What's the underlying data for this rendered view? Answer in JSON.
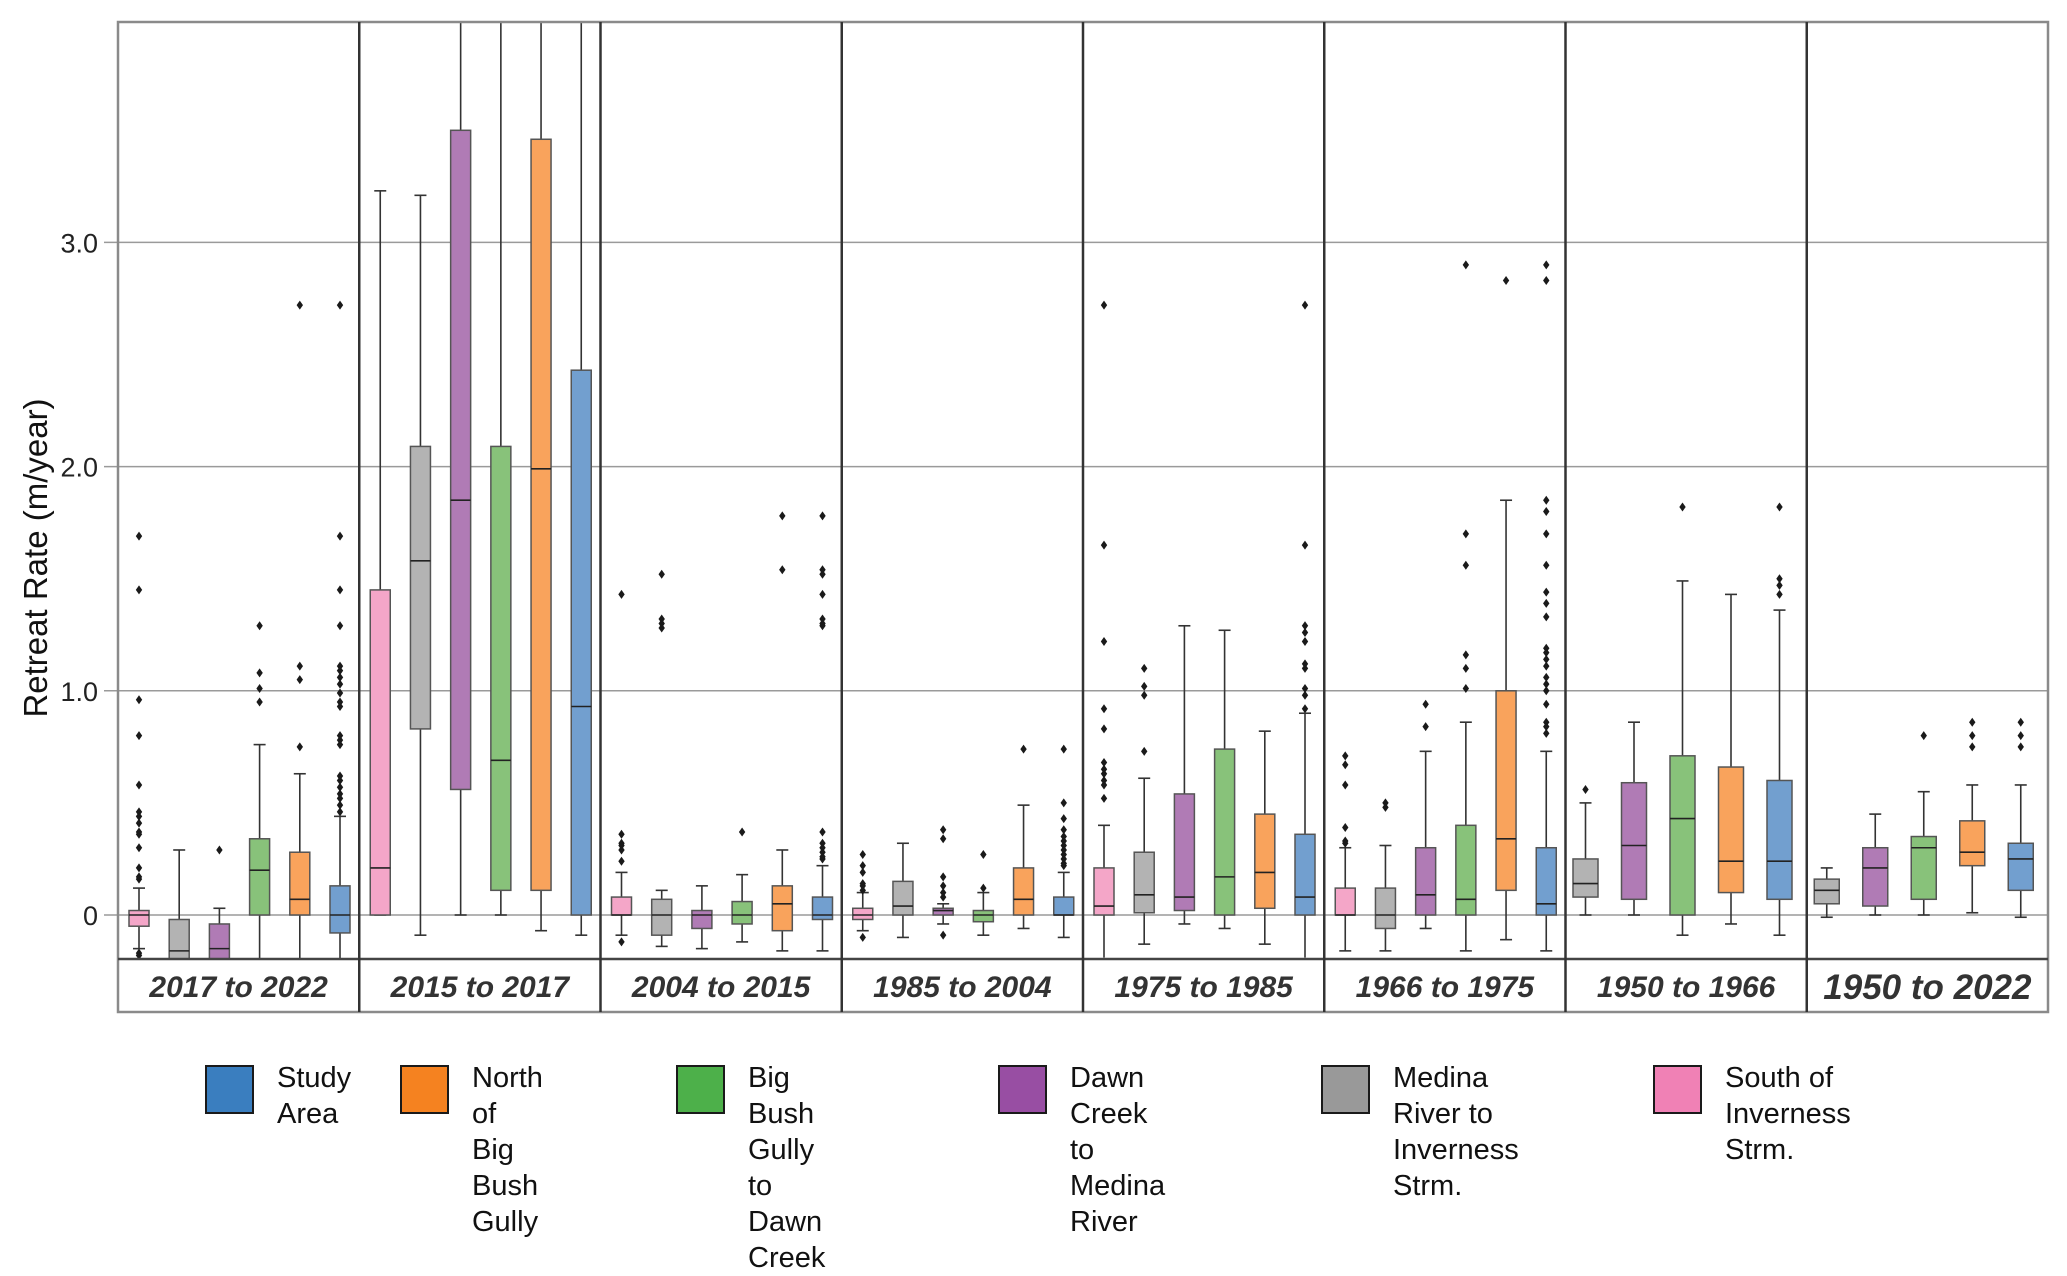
{
  "chart_data": {
    "type": "boxplot",
    "title": "",
    "ylabel": "Retreat Rate (m/year)",
    "xlabel": "",
    "ylim": [
      -0.22,
      3.98
    ],
    "yticks": [
      {
        "value": 0,
        "label": "0"
      },
      {
        "value": 1.0,
        "label": "1.0"
      },
      {
        "value": 2.0,
        "label": "2.0"
      },
      {
        "value": 3.0,
        "label": "3.0"
      }
    ],
    "grid": "horizontal",
    "legend_position": "bottom",
    "series": [
      {
        "key": "study",
        "name": "Study Area",
        "legend_label": "Study\nArea",
        "color": "#3a7ebf",
        "box_color": "#729fcf"
      },
      {
        "key": "north",
        "name": "North of Big Bush Gully",
        "legend_label": "North of Big\nBush Gully",
        "color": "#f58220",
        "box_color": "#f9a35c"
      },
      {
        "key": "bbg",
        "name": "Big Bush Gully to Dawn Creek",
        "legend_label": "Big Bush Gully\nto Dawn Creek",
        "color": "#4db04a",
        "box_color": "#88c27a"
      },
      {
        "key": "dawn",
        "name": "Dawn Creek to Medina River",
        "legend_label": "Dawn Creek to\nMedina River",
        "color": "#984ea3",
        "box_color": "#b07bb5"
      },
      {
        "key": "medina",
        "name": "Medina River to Inverness Strm.",
        "legend_label": "Medina River to\nInverness Strm.",
        "color": "#999999",
        "box_color": "#b3b3b3"
      },
      {
        "key": "south",
        "name": "South of Inverness Strm.",
        "legend_label": "South of\nInverness Strm.",
        "color": "#f081b5",
        "box_color": "#f4a6c8"
      }
    ],
    "panels": [
      {
        "label": "2017 to 2022",
        "emphasis": false,
        "boxes": [
          {
            "series": "south",
            "q1": -0.05,
            "median": 0.0,
            "q3": 0.02,
            "whislo": -0.15,
            "whishi": 0.12,
            "fliers": [
              1.69,
              1.45,
              0.96,
              0.8,
              0.58,
              0.46,
              0.44,
              0.41,
              0.37,
              0.36,
              0.3,
              0.21,
              0.17,
              0.16,
              -0.17,
              -0.18
            ]
          },
          {
            "series": "medina",
            "q1": -0.22,
            "median": -0.16,
            "q3": -0.02,
            "whislo": -0.22,
            "whishi": 0.29,
            "fliers": []
          },
          {
            "series": "dawn",
            "q1": -0.22,
            "median": -0.15,
            "q3": -0.04,
            "whislo": -0.22,
            "whishi": 0.03,
            "fliers": [
              0.29
            ]
          },
          {
            "series": "bbg",
            "q1": 0.0,
            "median": 0.2,
            "q3": 0.34,
            "whislo": -0.22,
            "whishi": 0.76,
            "fliers": [
              1.29,
              1.08,
              1.01,
              0.95
            ]
          },
          {
            "series": "north",
            "q1": 0.0,
            "median": 0.07,
            "q3": 0.28,
            "whislo": -0.22,
            "whishi": 0.63,
            "fliers": [
              2.72,
              1.11,
              1.05,
              0.75
            ]
          },
          {
            "series": "study",
            "q1": -0.08,
            "median": 0.0,
            "q3": 0.13,
            "whislo": -0.22,
            "whishi": 0.44,
            "fliers": [
              2.72,
              1.69,
              1.45,
              1.29,
              1.11,
              1.09,
              1.06,
              1.03,
              0.99,
              0.95,
              0.93,
              0.8,
              0.78,
              0.76,
              0.62,
              0.6,
              0.57,
              0.54,
              0.52,
              0.49,
              0.46
            ]
          }
        ]
      },
      {
        "label": "2015 to 2017",
        "emphasis": false,
        "boxes": [
          {
            "series": "south",
            "q1": 0.0,
            "median": 0.21,
            "q3": 1.45,
            "whislo": 0.0,
            "whishi": 3.23,
            "fliers": []
          },
          {
            "series": "medina",
            "q1": 0.83,
            "median": 1.58,
            "q3": 2.09,
            "whislo": -0.09,
            "whishi": 3.21,
            "fliers": []
          },
          {
            "series": "dawn",
            "q1": 0.56,
            "median": 1.85,
            "q3": 3.5,
            "whislo": 0.0,
            "whishi": 4.5,
            "fliers": []
          },
          {
            "series": "bbg",
            "q1": 0.11,
            "median": 0.69,
            "q3": 2.09,
            "whislo": 0.0,
            "whishi": 4.5,
            "fliers": []
          },
          {
            "series": "north",
            "q1": 0.11,
            "median": 1.99,
            "q3": 3.46,
            "whislo": -0.07,
            "whishi": 4.5,
            "fliers": []
          },
          {
            "series": "study",
            "q1": 0.0,
            "median": 0.93,
            "q3": 2.43,
            "whislo": -0.09,
            "whishi": 4.5,
            "fliers": []
          }
        ]
      },
      {
        "label": "2004 to 2015",
        "emphasis": false,
        "boxes": [
          {
            "series": "south",
            "q1": 0.0,
            "median": 0.0,
            "q3": 0.08,
            "whislo": -0.09,
            "whishi": 0.19,
            "fliers": [
              1.43,
              0.36,
              0.32,
              0.31,
              0.29,
              0.24,
              -0.12
            ]
          },
          {
            "series": "medina",
            "q1": -0.09,
            "median": 0.0,
            "q3": 0.07,
            "whislo": -0.14,
            "whishi": 0.11,
            "fliers": [
              1.52,
              1.32,
              1.3,
              1.28
            ]
          },
          {
            "series": "dawn",
            "q1": -0.06,
            "median": 0.0,
            "q3": 0.02,
            "whislo": -0.15,
            "whishi": 0.13,
            "fliers": []
          },
          {
            "series": "bbg",
            "q1": -0.04,
            "median": 0.0,
            "q3": 0.06,
            "whislo": -0.12,
            "whishi": 0.18,
            "fliers": [
              0.37
            ]
          },
          {
            "series": "north",
            "q1": -0.07,
            "median": 0.05,
            "q3": 0.13,
            "whislo": -0.16,
            "whishi": 0.29,
            "fliers": [
              1.78,
              1.54
            ]
          },
          {
            "series": "study",
            "q1": -0.02,
            "median": 0.0,
            "q3": 0.08,
            "whislo": -0.16,
            "whishi": 0.22,
            "fliers": [
              1.78,
              1.54,
              1.52,
              1.43,
              1.32,
              1.3,
              1.29,
              0.37,
              0.32,
              0.3,
              0.28,
              0.26,
              0.25
            ]
          }
        ]
      },
      {
        "label": "1985 to 2004",
        "emphasis": false,
        "boxes": [
          {
            "series": "south",
            "q1": -0.02,
            "median": 0.0,
            "q3": 0.03,
            "whislo": -0.07,
            "whishi": 0.1,
            "fliers": [
              0.27,
              0.22,
              0.19,
              0.14,
              0.13,
              0.11,
              -0.1
            ]
          },
          {
            "series": "medina",
            "q1": 0.0,
            "median": 0.04,
            "q3": 0.15,
            "whislo": -0.1,
            "whishi": 0.32,
            "fliers": []
          },
          {
            "series": "dawn",
            "q1": 0.0,
            "median": 0.02,
            "q3": 0.03,
            "whislo": -0.04,
            "whishi": 0.05,
            "fliers": [
              0.38,
              0.34,
              0.17,
              0.13,
              0.1,
              0.08,
              -0.09
            ]
          },
          {
            "series": "bbg",
            "q1": -0.03,
            "median": 0.0,
            "q3": 0.02,
            "whislo": -0.09,
            "whishi": 0.1,
            "fliers": [
              0.27,
              0.12
            ]
          },
          {
            "series": "north",
            "q1": 0.0,
            "median": 0.07,
            "q3": 0.21,
            "whislo": -0.06,
            "whishi": 0.49,
            "fliers": [
              0.74
            ]
          },
          {
            "series": "study",
            "q1": 0.0,
            "median": 0.0,
            "q3": 0.08,
            "whislo": -0.1,
            "whishi": 0.19,
            "fliers": [
              0.74,
              0.5,
              0.43,
              0.38,
              0.35,
              0.33,
              0.31,
              0.29,
              0.27,
              0.25,
              0.23,
              0.22
            ]
          }
        ]
      },
      {
        "label": "1975 to 1985",
        "emphasis": false,
        "boxes": [
          {
            "series": "south",
            "q1": 0.0,
            "median": 0.04,
            "q3": 0.21,
            "whislo": -0.19,
            "whishi": 0.4,
            "fliers": [
              2.72,
              1.65,
              1.22,
              0.92,
              0.83,
              0.68,
              0.65,
              0.63,
              0.6,
              0.58,
              0.52
            ]
          },
          {
            "series": "medina",
            "q1": 0.01,
            "median": 0.09,
            "q3": 0.28,
            "whislo": -0.13,
            "whishi": 0.61,
            "fliers": [
              1.1,
              1.02,
              0.98,
              0.73
            ]
          },
          {
            "series": "dawn",
            "q1": 0.02,
            "median": 0.08,
            "q3": 0.54,
            "whislo": -0.04,
            "whishi": 1.29,
            "fliers": []
          },
          {
            "series": "bbg",
            "q1": 0.0,
            "median": 0.17,
            "q3": 0.74,
            "whislo": -0.06,
            "whishi": 1.27,
            "fliers": []
          },
          {
            "series": "north",
            "q1": 0.03,
            "median": 0.19,
            "q3": 0.45,
            "whislo": -0.13,
            "whishi": 0.82,
            "fliers": []
          },
          {
            "series": "study",
            "q1": 0.0,
            "median": 0.08,
            "q3": 0.36,
            "whislo": -0.19,
            "whishi": 0.9,
            "fliers": [
              2.72,
              1.65,
              1.29,
              1.26,
              1.22,
              1.12,
              1.1,
              1.01,
              0.98,
              0.92
            ]
          }
        ]
      },
      {
        "label": "1966 to 1975",
        "emphasis": false,
        "boxes": [
          {
            "series": "south",
            "q1": 0.0,
            "median": 0.0,
            "q3": 0.12,
            "whislo": -0.16,
            "whishi": 0.3,
            "fliers": [
              0.71,
              0.67,
              0.58,
              0.39,
              0.33,
              0.32
            ]
          },
          {
            "series": "medina",
            "q1": -0.06,
            "median": 0.0,
            "q3": 0.12,
            "whislo": -0.16,
            "whishi": 0.31,
            "fliers": [
              0.5,
              0.48
            ]
          },
          {
            "series": "dawn",
            "q1": 0.0,
            "median": 0.09,
            "q3": 0.3,
            "whislo": -0.06,
            "whishi": 0.73,
            "fliers": [
              0.94,
              0.84
            ]
          },
          {
            "series": "bbg",
            "q1": 0.0,
            "median": 0.07,
            "q3": 0.4,
            "whislo": -0.16,
            "whishi": 0.86,
            "fliers": [
              2.9,
              1.7,
              1.56,
              1.16,
              1.1,
              1.01
            ]
          },
          {
            "series": "north",
            "q1": 0.11,
            "median": 0.34,
            "q3": 1.0,
            "whislo": -0.11,
            "whishi": 1.85,
            "fliers": [
              2.83
            ]
          },
          {
            "series": "study",
            "q1": 0.0,
            "median": 0.05,
            "q3": 0.3,
            "whislo": -0.16,
            "whishi": 0.73,
            "fliers": [
              2.9,
              2.83,
              1.85,
              1.8,
              1.7,
              1.56,
              1.44,
              1.39,
              1.33,
              1.19,
              1.17,
              1.14,
              1.11,
              1.06,
              1.03,
              1.0,
              0.94,
              0.86,
              0.84,
              0.81
            ]
          }
        ]
      },
      {
        "label": "1950 to 1966",
        "emphasis": false,
        "boxes": [
          {
            "series": "medina",
            "q1": 0.08,
            "median": 0.14,
            "q3": 0.25,
            "whislo": 0.0,
            "whishi": 0.5,
            "fliers": [
              0.56
            ]
          },
          {
            "series": "dawn",
            "q1": 0.07,
            "median": 0.31,
            "q3": 0.59,
            "whislo": 0.0,
            "whishi": 0.86,
            "fliers": []
          },
          {
            "series": "bbg",
            "q1": 0.0,
            "median": 0.43,
            "q3": 0.71,
            "whislo": -0.09,
            "whishi": 1.49,
            "fliers": [
              1.82
            ]
          },
          {
            "series": "north",
            "q1": 0.1,
            "median": 0.24,
            "q3": 0.66,
            "whislo": -0.04,
            "whishi": 1.43,
            "fliers": []
          },
          {
            "series": "study",
            "q1": 0.07,
            "median": 0.24,
            "q3": 0.6,
            "whislo": -0.09,
            "whishi": 1.36,
            "fliers": [
              1.82,
              1.5,
              1.47,
              1.43
            ]
          }
        ]
      },
      {
        "label": "1950 to 2022",
        "emphasis": true,
        "boxes": [
          {
            "series": "medina",
            "q1": 0.05,
            "median": 0.11,
            "q3": 0.16,
            "whislo": -0.01,
            "whishi": 0.21,
            "fliers": []
          },
          {
            "series": "dawn",
            "q1": 0.04,
            "median": 0.21,
            "q3": 0.3,
            "whislo": 0.0,
            "whishi": 0.45,
            "fliers": []
          },
          {
            "series": "bbg",
            "q1": 0.07,
            "median": 0.3,
            "q3": 0.35,
            "whislo": 0.0,
            "whishi": 0.55,
            "fliers": [
              0.8
            ]
          },
          {
            "series": "north",
            "q1": 0.22,
            "median": 0.28,
            "q3": 0.42,
            "whislo": 0.01,
            "whishi": 0.58,
            "fliers": [
              0.86,
              0.8,
              0.75
            ]
          },
          {
            "series": "study",
            "q1": 0.11,
            "median": 0.25,
            "q3": 0.32,
            "whislo": -0.01,
            "whishi": 0.58,
            "fliers": [
              0.86,
              0.8,
              0.75
            ]
          }
        ]
      }
    ]
  }
}
